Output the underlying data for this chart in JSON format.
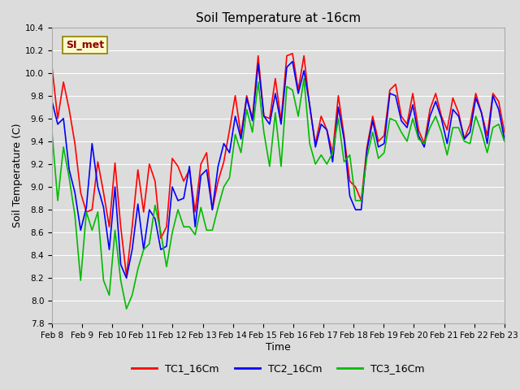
{
  "title": "Soil Temperature at -16cm",
  "xlabel": "Time",
  "ylabel": "Soil Temperature (C)",
  "ylim": [
    7.8,
    10.4
  ],
  "x_tick_labels": [
    "Feb 8",
    "Feb 9",
    "Feb 10",
    "Feb 11",
    "Feb 12",
    "Feb 13",
    "Feb 14",
    "Feb 15",
    "Feb 16",
    "Feb 17",
    "Feb 18",
    "Feb 19",
    "Feb 20",
    "Feb 21",
    "Feb 22",
    "Feb 23"
  ],
  "annotation_text": "SI_met",
  "annotation_color": "#8B0000",
  "annotation_bg": "#FFFACD",
  "annotation_border": "#8B8000",
  "line_colors": [
    "#FF0000",
    "#0000FF",
    "#00BB00"
  ],
  "line_labels": [
    "TC1_16Cm",
    "TC2_16Cm",
    "TC3_16Cm"
  ],
  "bg_color": "#DCDCDC",
  "title_fontsize": 11,
  "axis_fontsize": 9,
  "tick_fontsize": 7.5,
  "legend_fontsize": 9,
  "line_width": 1.2,
  "grid_color": "#FFFFFF",
  "grid_lw": 0.8,
  "TC1_16Cm": [
    10.05,
    9.6,
    9.92,
    9.68,
    9.38,
    8.95,
    8.78,
    8.8,
    9.22,
    8.95,
    8.65,
    9.21,
    8.65,
    8.22,
    8.65,
    9.15,
    8.78,
    9.2,
    9.05,
    8.55,
    8.65,
    9.25,
    9.18,
    9.05,
    9.15,
    8.78,
    9.2,
    9.3,
    8.8,
    9.05,
    9.22,
    9.5,
    9.8,
    9.45,
    9.8,
    9.6,
    10.15,
    9.62,
    9.6,
    9.95,
    9.58,
    10.15,
    10.17,
    9.85,
    10.15,
    9.7,
    9.38,
    9.62,
    9.5,
    9.3,
    9.8,
    9.45,
    9.05,
    9.0,
    8.88,
    9.35,
    9.62,
    9.4,
    9.45,
    9.85,
    9.9,
    9.62,
    9.55,
    9.82,
    9.5,
    9.38,
    9.68,
    9.82,
    9.62,
    9.5,
    9.78,
    9.65,
    9.42,
    9.55,
    9.82,
    9.65,
    9.45,
    9.82,
    9.75,
    9.48
  ],
  "TC2_16Cm": [
    9.75,
    9.55,
    9.6,
    9.15,
    8.95,
    8.62,
    8.82,
    9.38,
    9.0,
    8.82,
    8.45,
    9.0,
    8.32,
    8.2,
    8.45,
    8.85,
    8.45,
    8.8,
    8.72,
    8.45,
    8.48,
    9.0,
    8.88,
    8.9,
    9.18,
    8.65,
    9.1,
    9.15,
    8.8,
    9.18,
    9.38,
    9.3,
    9.62,
    9.42,
    9.78,
    9.58,
    10.08,
    9.62,
    9.55,
    9.82,
    9.55,
    10.05,
    10.1,
    9.82,
    10.02,
    9.72,
    9.35,
    9.55,
    9.5,
    9.22,
    9.7,
    9.42,
    8.92,
    8.8,
    8.8,
    9.32,
    9.58,
    9.35,
    9.38,
    9.82,
    9.8,
    9.58,
    9.52,
    9.72,
    9.45,
    9.35,
    9.62,
    9.75,
    9.6,
    9.38,
    9.68,
    9.62,
    9.42,
    9.48,
    9.78,
    9.65,
    9.38,
    9.8,
    9.68,
    9.42
  ],
  "TC3_16Cm": [
    9.48,
    8.88,
    9.35,
    9.08,
    8.75,
    8.18,
    8.78,
    8.62,
    8.78,
    8.18,
    8.05,
    8.62,
    8.18,
    7.93,
    8.05,
    8.28,
    8.45,
    8.5,
    8.84,
    8.6,
    8.3,
    8.6,
    8.8,
    8.65,
    8.65,
    8.58,
    8.82,
    8.62,
    8.62,
    8.82,
    9.0,
    9.08,
    9.46,
    9.3,
    9.68,
    9.48,
    9.92,
    9.48,
    9.18,
    9.65,
    9.18,
    9.88,
    9.85,
    9.62,
    9.95,
    9.38,
    9.2,
    9.28,
    9.2,
    9.3,
    9.6,
    9.22,
    9.28,
    8.88,
    8.88,
    9.26,
    9.48,
    9.25,
    9.3,
    9.6,
    9.58,
    9.48,
    9.4,
    9.6,
    9.42,
    9.38,
    9.52,
    9.62,
    9.48,
    9.28,
    9.52,
    9.52,
    9.4,
    9.38,
    9.62,
    9.48,
    9.3,
    9.52,
    9.55,
    9.4
  ]
}
